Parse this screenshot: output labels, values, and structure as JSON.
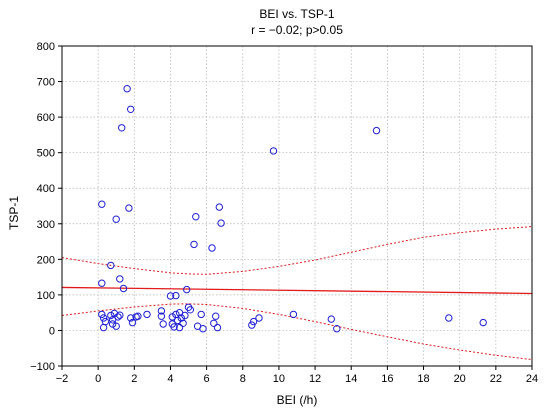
{
  "chart_data": {
    "type": "scatter",
    "title": "BEI vs. TSP-1",
    "subtitle": "r = −0.02; p>0.05",
    "xlabel": "BEI (/h)",
    "ylabel": "TSP-1",
    "xlim": [
      -2,
      24
    ],
    "ylim": [
      -100,
      800
    ],
    "xticks": [
      "−2",
      "0",
      "2",
      "4",
      "6",
      "8",
      "10",
      "12",
      "14",
      "16",
      "18",
      "20",
      "22",
      "24"
    ],
    "yticks": [
      "−100",
      "0",
      "100",
      "200",
      "300",
      "400",
      "500",
      "600",
      "700",
      "800"
    ],
    "grid": true,
    "colors": {
      "points": "#1f1fd6",
      "fit": "#e31a1c",
      "grid": "#b0b0b0"
    },
    "points": [
      {
        "x": 0.2,
        "y": 355
      },
      {
        "x": 0.2,
        "y": 133
      },
      {
        "x": 0.2,
        "y": 45
      },
      {
        "x": 0.3,
        "y": 35
      },
      {
        "x": 0.3,
        "y": 8
      },
      {
        "x": 0.4,
        "y": 25
      },
      {
        "x": 0.7,
        "y": 183
      },
      {
        "x": 0.7,
        "y": 42
      },
      {
        "x": 0.8,
        "y": 30
      },
      {
        "x": 0.8,
        "y": 18
      },
      {
        "x": 0.9,
        "y": 48
      },
      {
        "x": 1.0,
        "y": 313
      },
      {
        "x": 1.0,
        "y": 12
      },
      {
        "x": 1.1,
        "y": 38
      },
      {
        "x": 1.2,
        "y": 43
      },
      {
        "x": 1.2,
        "y": 145
      },
      {
        "x": 1.3,
        "y": 570
      },
      {
        "x": 1.4,
        "y": 118
      },
      {
        "x": 1.6,
        "y": 680
      },
      {
        "x": 1.7,
        "y": 344
      },
      {
        "x": 1.8,
        "y": 622
      },
      {
        "x": 1.8,
        "y": 35
      },
      {
        "x": 1.9,
        "y": 22
      },
      {
        "x": 2.1,
        "y": 38
      },
      {
        "x": 2.2,
        "y": 40
      },
      {
        "x": 2.7,
        "y": 45
      },
      {
        "x": 3.5,
        "y": 55
      },
      {
        "x": 3.5,
        "y": 40
      },
      {
        "x": 3.6,
        "y": 18
      },
      {
        "x": 4.0,
        "y": 97
      },
      {
        "x": 4.1,
        "y": 18
      },
      {
        "x": 4.1,
        "y": 38
      },
      {
        "x": 4.2,
        "y": 10
      },
      {
        "x": 4.3,
        "y": 98
      },
      {
        "x": 4.3,
        "y": 45
      },
      {
        "x": 4.4,
        "y": 28
      },
      {
        "x": 4.5,
        "y": 50
      },
      {
        "x": 4.5,
        "y": 8
      },
      {
        "x": 4.6,
        "y": 35
      },
      {
        "x": 4.7,
        "y": 20
      },
      {
        "x": 4.8,
        "y": 42
      },
      {
        "x": 4.9,
        "y": 115
      },
      {
        "x": 5.0,
        "y": 65
      },
      {
        "x": 5.1,
        "y": 58
      },
      {
        "x": 5.3,
        "y": 242
      },
      {
        "x": 5.4,
        "y": 320
      },
      {
        "x": 5.5,
        "y": 12
      },
      {
        "x": 5.7,
        "y": 45
      },
      {
        "x": 5.8,
        "y": 5
      },
      {
        "x": 6.3,
        "y": 232
      },
      {
        "x": 6.4,
        "y": 20
      },
      {
        "x": 6.5,
        "y": 40
      },
      {
        "x": 6.6,
        "y": 8
      },
      {
        "x": 6.7,
        "y": 347
      },
      {
        "x": 6.8,
        "y": 302
      },
      {
        "x": 8.5,
        "y": 15
      },
      {
        "x": 8.6,
        "y": 25
      },
      {
        "x": 8.9,
        "y": 35
      },
      {
        "x": 9.7,
        "y": 505
      },
      {
        "x": 10.8,
        "y": 45
      },
      {
        "x": 12.9,
        "y": 32
      },
      {
        "x": 13.2,
        "y": 5
      },
      {
        "x": 15.4,
        "y": 562
      },
      {
        "x": 19.4,
        "y": 35
      },
      {
        "x": 21.3,
        "y": 22
      }
    ],
    "fit_line": [
      {
        "x": -2,
        "y": 121
      },
      {
        "x": 24,
        "y": 104
      }
    ],
    "confidence_band": {
      "upper": [
        {
          "x": -2,
          "y": 205
        },
        {
          "x": 0,
          "y": 188
        },
        {
          "x": 2,
          "y": 174
        },
        {
          "x": 4,
          "y": 162
        },
        {
          "x": 5,
          "y": 159
        },
        {
          "x": 6,
          "y": 158
        },
        {
          "x": 8,
          "y": 166
        },
        {
          "x": 10,
          "y": 180
        },
        {
          "x": 12,
          "y": 198
        },
        {
          "x": 14,
          "y": 220
        },
        {
          "x": 16,
          "y": 242
        },
        {
          "x": 18,
          "y": 262
        },
        {
          "x": 20,
          "y": 275
        },
        {
          "x": 22,
          "y": 285
        },
        {
          "x": 24,
          "y": 292
        }
      ],
      "lower": [
        {
          "x": -2,
          "y": 42
        },
        {
          "x": 0,
          "y": 55
        },
        {
          "x": 2,
          "y": 66
        },
        {
          "x": 4,
          "y": 74
        },
        {
          "x": 5,
          "y": 75
        },
        {
          "x": 6,
          "y": 73
        },
        {
          "x": 8,
          "y": 62
        },
        {
          "x": 10,
          "y": 45
        },
        {
          "x": 12,
          "y": 25
        },
        {
          "x": 14,
          "y": 3
        },
        {
          "x": 16,
          "y": -18
        },
        {
          "x": 18,
          "y": -38
        },
        {
          "x": 20,
          "y": -55
        },
        {
          "x": 22,
          "y": -70
        },
        {
          "x": 24,
          "y": -82
        }
      ]
    }
  }
}
